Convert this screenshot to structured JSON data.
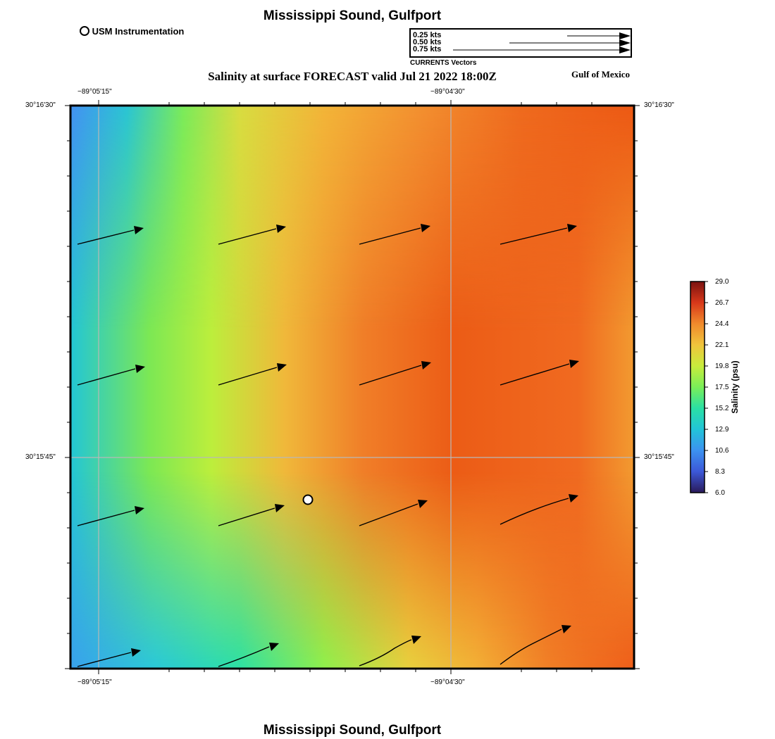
{
  "header": {
    "title": "Mississippi Sound, Gulfport",
    "subtitle": "Salinity at surface FORECAST valid Jul 21 2022 18:00Z",
    "region": "Gulf of Mexico",
    "instrumentation_label": "USM Instrumentation"
  },
  "vector_legend": {
    "entries": [
      "0.25 kts",
      "0.50 kts",
      "0.75 kts"
    ],
    "caption": "CURRENTS Vectors"
  },
  "axes": {
    "lon_ticks": [
      "−89°05'15\"",
      "−89°04'30\""
    ],
    "lat_ticks": [
      "30°16'30\"",
      "30°15'45\""
    ]
  },
  "colorbar": {
    "label": "Salinity (psu)",
    "ticks": [
      "29.0",
      "26.7",
      "24.4",
      "22.1",
      "19.8",
      "17.5",
      "15.2",
      "12.9",
      "10.6",
      "8.3",
      "6.0"
    ],
    "range": [
      6.0,
      29.0
    ]
  },
  "footer": {
    "title": "Mississippi Sound, Gulfport"
  },
  "colors": {
    "orange_dark": "#ec5a14",
    "orange": "#f28a2a",
    "yellow": "#e8cc3c",
    "green": "#9af04a",
    "teal": "#28d4bc",
    "blue": "#3a8cf0"
  }
}
